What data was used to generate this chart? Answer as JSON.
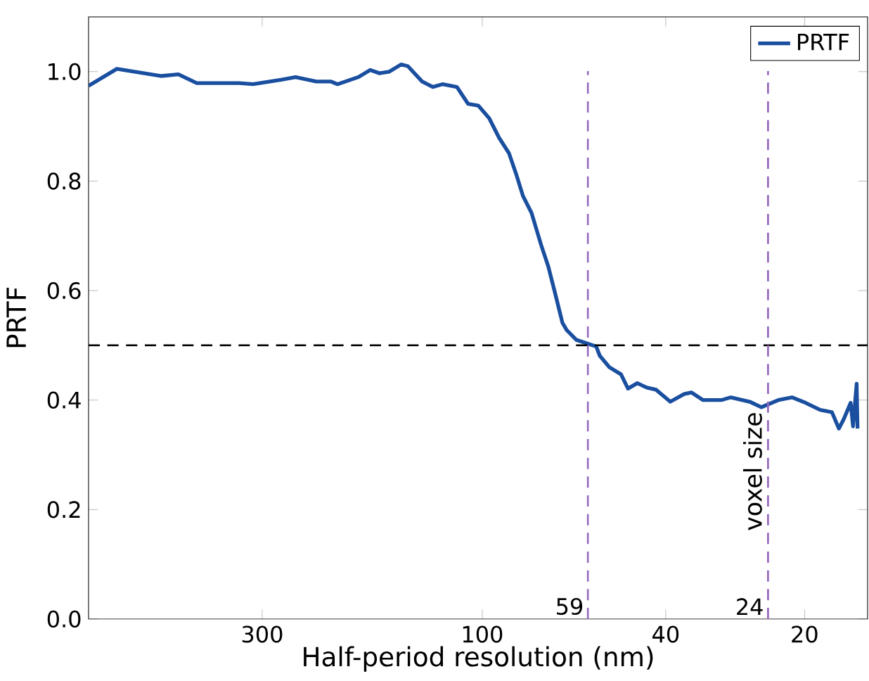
{
  "chart_data": {
    "type": "line",
    "xlabel": "Half-period resolution (nm)",
    "ylabel": "PRTF",
    "log": "x",
    "legend": "top right",
    "xlim": [
      714,
      14.6
    ],
    "ylim": [
      0,
      1.1
    ],
    "xticks": [
      300,
      100,
      40,
      20
    ],
    "yticks": [
      {
        "value": 0,
        "label": "0.0"
      },
      {
        "value": 0.2,
        "label": "0.2"
      },
      {
        "value": 0.4,
        "label": "0.4"
      },
      {
        "value": 0.6,
        "label": "0.6"
      },
      {
        "value": 0.8,
        "label": "0.8"
      },
      {
        "value": 1.0,
        "label": "1.0"
      }
    ],
    "x": [
      714,
      620,
      496,
      456,
      416,
      337,
      314,
      273,
      254,
      229,
      213,
      206,
      185.5,
      175,
      167,
      159,
      150,
      145,
      135,
      128,
      122,
      113.5,
      107.3,
      102,
      96.6,
      91.9,
      87.5,
      84.5,
      81.6,
      78.2,
      74.5,
      71.9,
      69.4,
      67.0,
      65.6,
      62.5,
      56.6,
      55.6,
      53.0,
      50.0,
      48.3,
      46.1,
      44.0,
      42.0,
      39.1,
      36.5,
      35.2,
      33.2,
      30.3,
      28.9,
      26.3,
      24.8,
      22.8,
      21.3,
      19.9,
      18.5,
      17.45,
      16.85,
      16.45,
      15.89,
      15.7,
      15.42,
      15.35
    ],
    "series": [
      {
        "name": "PRTF",
        "color": "#1a4fa0",
        "values": [
          0.974,
          1.005,
          0.992,
          0.995,
          0.979,
          0.979,
          0.977,
          0.985,
          0.99,
          0.982,
          0.982,
          0.977,
          0.99,
          1.003,
          0.997,
          1.0,
          1.013,
          1.01,
          0.982,
          0.972,
          0.977,
          0.972,
          0.941,
          0.938,
          0.915,
          0.879,
          0.851,
          0.814,
          0.773,
          0.742,
          0.683,
          0.644,
          0.593,
          0.541,
          0.528,
          0.51,
          0.498,
          0.481,
          0.46,
          0.447,
          0.421,
          0.431,
          0.423,
          0.419,
          0.397,
          0.411,
          0.414,
          0.4,
          0.4,
          0.405,
          0.397,
          0.387,
          0.4,
          0.405,
          0.395,
          0.382,
          0.378,
          0.348,
          0.365,
          0.395,
          0.352,
          0.43,
          0.348
        ]
      }
    ],
    "ref_lines": [
      {
        "axis": "y",
        "value": 0.5,
        "color": "#000000",
        "line_style": "dashed"
      },
      {
        "axis": "x",
        "value": 59,
        "label": "59",
        "color": "#9467bd",
        "line_style": "dashed"
      },
      {
        "axis": "x",
        "value": 24,
        "label": "24",
        "color": "#9467bd",
        "line_style": "dashed"
      }
    ],
    "annotations": [
      {
        "text": "voxel size",
        "x": 24,
        "y": 0.15
      }
    ]
  }
}
